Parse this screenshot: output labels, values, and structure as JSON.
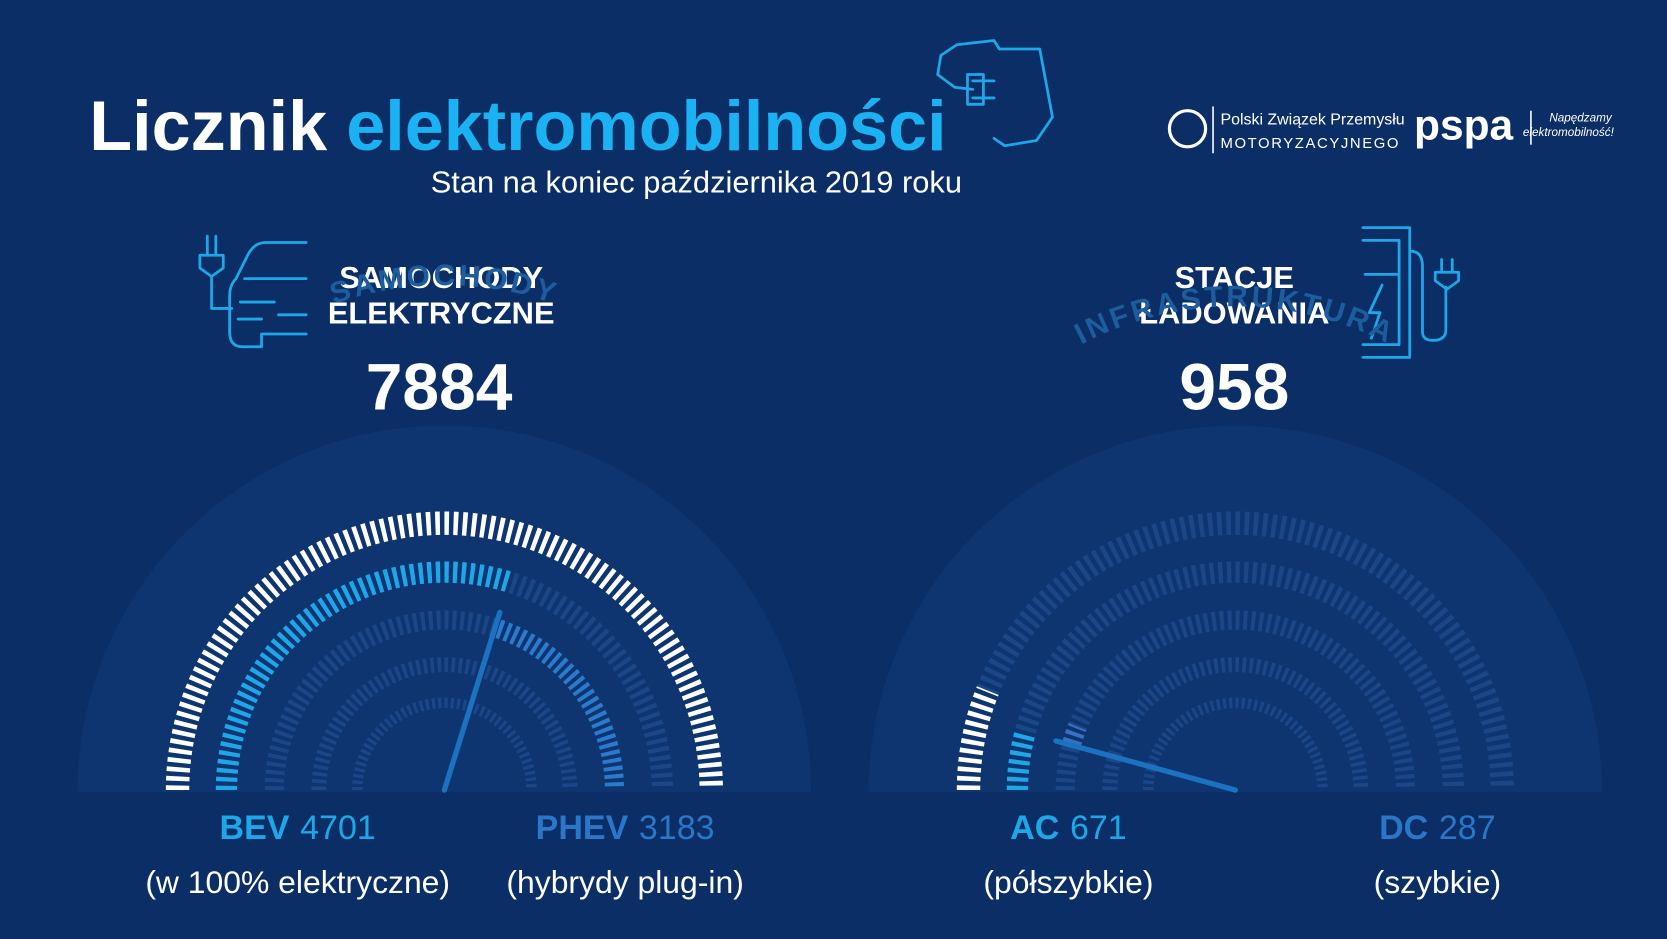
{
  "header": {
    "title_part1": "Licznik",
    "title_part2": "elektromobilności",
    "subtitle": "Stan na koniec października 2019 roku",
    "logo_pzpm_line1": "Polski Związek Przemysłu",
    "logo_pzpm_line2": "MOTORYZACYJNEGO",
    "logo_pspa": "pspa",
    "logo_pspa_tagline_line1": "Napędzamy",
    "logo_pspa_tagline_line2": "elektromobilność!"
  },
  "sections": [
    {
      "title_line1": "SAMOCHODY",
      "title_line2": "ELEKTRYCZNE",
      "total": 7884,
      "gauge_label": "SAMOCHODY",
      "items": [
        {
          "name": "BEV",
          "value": 4701,
          "description": "(w 100% elektryczne)"
        },
        {
          "name": "PHEV",
          "value": 3183,
          "description": "(hybrydy plug-in)"
        }
      ]
    },
    {
      "title_line1": "STACJE",
      "title_line2": "ŁADOWANIA",
      "total": 958,
      "gauge_label": "INFRASTRUKTURA",
      "items": [
        {
          "name": "AC",
          "value": 671,
          "description": "(półszybkie)"
        },
        {
          "name": "DC",
          "value": 287,
          "description": "(szybkie)"
        }
      ]
    }
  ]
}
